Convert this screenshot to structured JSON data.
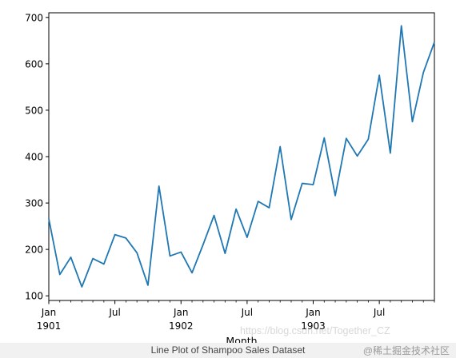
{
  "caption": "Line Plot of Shampoo Sales Dataset",
  "watermark": {
    "url": "https://blog.csdn.net/Together_CZ",
    "site": "@稀土掘金技术社区"
  },
  "colors": {
    "line": "#1f77b4",
    "axis": "#000000"
  },
  "chart_data": {
    "type": "line",
    "title": "",
    "xlabel": "Month",
    "ylabel": "",
    "ylim": [
      90,
      710
    ],
    "yticks": [
      100,
      200,
      300,
      400,
      500,
      600,
      700
    ],
    "xticks": [
      {
        "index": 0,
        "label": "Jan",
        "sublabel": "1901"
      },
      {
        "index": 6,
        "label": "Jul",
        "sublabel": ""
      },
      {
        "index": 12,
        "label": "Jan",
        "sublabel": "1902"
      },
      {
        "index": 18,
        "label": "Jul",
        "sublabel": ""
      },
      {
        "index": 24,
        "label": "Jan",
        "sublabel": "1903"
      },
      {
        "index": 30,
        "label": "Jul",
        "sublabel": ""
      }
    ],
    "x": [
      "1901-01",
      "1901-02",
      "1901-03",
      "1901-04",
      "1901-05",
      "1901-06",
      "1901-07",
      "1901-08",
      "1901-09",
      "1901-10",
      "1901-11",
      "1901-12",
      "1902-01",
      "1902-02",
      "1902-03",
      "1902-04",
      "1902-05",
      "1902-06",
      "1902-07",
      "1902-08",
      "1902-09",
      "1902-10",
      "1902-11",
      "1902-12",
      "1903-01",
      "1903-02",
      "1903-03",
      "1903-04",
      "1903-05",
      "1903-06",
      "1903-07",
      "1903-08",
      "1903-09",
      "1903-10",
      "1903-11",
      "1903-12"
    ],
    "series": [
      {
        "values": [
          266.0,
          145.9,
          183.1,
          119.3,
          180.3,
          168.5,
          231.8,
          224.5,
          192.8,
          122.9,
          336.5,
          185.9,
          194.3,
          149.5,
          210.1,
          273.3,
          191.4,
          287.0,
          226.0,
          303.6,
          289.9,
          421.6,
          264.5,
          342.3,
          339.7,
          440.4,
          315.9,
          439.3,
          401.3,
          437.4,
          575.5,
          407.6,
          682.0,
          475.3,
          581.3,
          646.9
        ]
      }
    ],
    "grid": false,
    "legend": "none"
  }
}
